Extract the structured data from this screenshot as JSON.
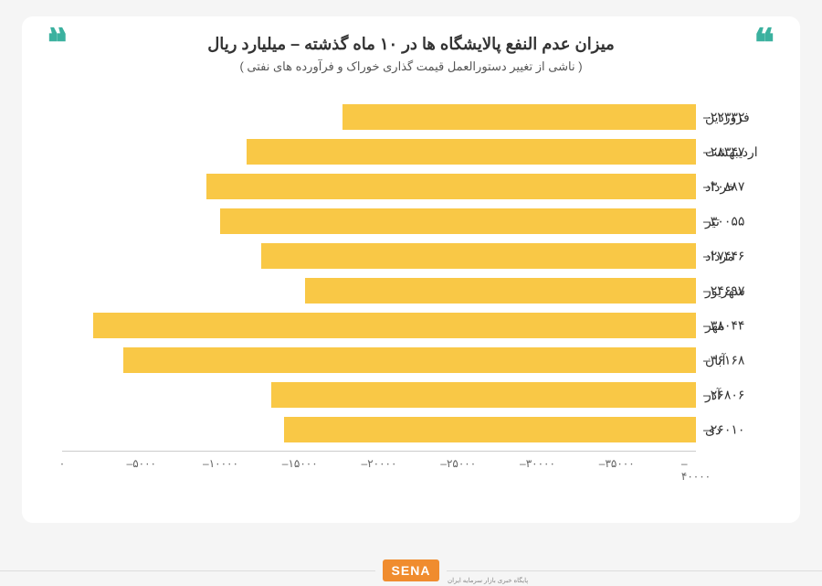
{
  "title": "میزان عدم النفع پالایشگاه ها در ۱۰ ماه گذشته – میلیارد ریال",
  "subtitle": "( ناشی از تغییر دستورالعمل قیمت گذاری خوراک و فرآورده های نفتی )",
  "chart": {
    "type": "bar",
    "bar_color": "#f9c846",
    "background_color": "#ffffff",
    "text_color": "#333333",
    "axis_color": "#cccccc",
    "xmin": 0,
    "xmax": 40000,
    "xtick_step": 5000,
    "xticks": [
      {
        "pos": 0,
        "label": "۰"
      },
      {
        "pos": 5000,
        "label": "–۵۰۰۰"
      },
      {
        "pos": 10000,
        "label": "–۱۰۰۰۰"
      },
      {
        "pos": 15000,
        "label": "–۱۵۰۰۰"
      },
      {
        "pos": 20000,
        "label": "–۲۰۰۰۰"
      },
      {
        "pos": 25000,
        "label": "–۲۵۰۰۰"
      },
      {
        "pos": 30000,
        "label": "–۳۰۰۰۰"
      },
      {
        "pos": 35000,
        "label": "–۳۵۰۰۰"
      },
      {
        "pos": 40000,
        "label": "–۴۰۰۰۰"
      }
    ],
    "bars": [
      {
        "label": "فروردین",
        "value": 22332,
        "display": "–۲۲۳۳۲"
      },
      {
        "label": "اردیبهشت",
        "value": 28347,
        "display": "–۲۸۳۴۷"
      },
      {
        "label": "خرداد",
        "value": 30887,
        "display": "–۳۰۸۸۷"
      },
      {
        "label": "تیر",
        "value": 30055,
        "display": "–۳۰۰۵۵"
      },
      {
        "label": "مرداد",
        "value": 27446,
        "display": "–۲۷۴۴۶"
      },
      {
        "label": "شهریور",
        "value": 24697,
        "display": "–۲۴۶۹۷"
      },
      {
        "label": "مهر",
        "value": 38044,
        "display": "–۳۸۰۴۴"
      },
      {
        "label": "آبان",
        "value": 36168,
        "display": "–۳۶۱۶۸"
      },
      {
        "label": "آذر",
        "value": 26806,
        "display": "–۲۶۸۰۶"
      },
      {
        "label": "دی",
        "value": 26010,
        "display": "–۲۶۰۱۰"
      }
    ]
  },
  "logo": {
    "text": "SENA",
    "sub": "پایگاه خبری بازار سرمایه ایران",
    "bg_color": "#f08c2e"
  },
  "quote_color": "#3bb19f"
}
